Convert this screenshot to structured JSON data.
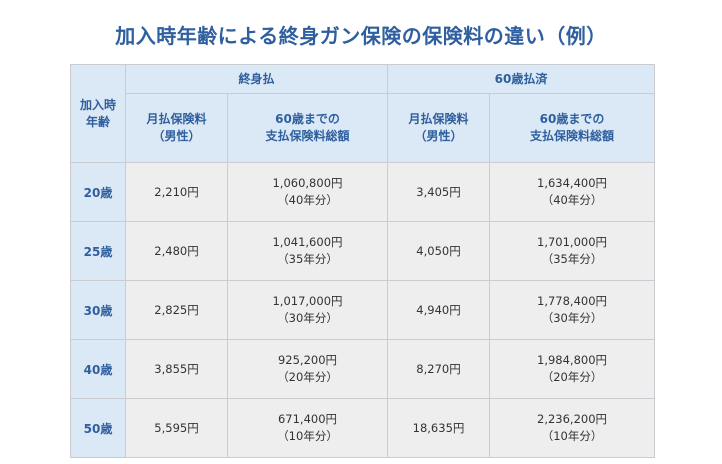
{
  "title": "加入時年齢による終身ガン保険の保険料の違い（例）",
  "table": {
    "age_header": [
      "加入時",
      "年齢"
    ],
    "groups": [
      "終身払",
      "60歳払済"
    ],
    "subheaders": [
      [
        "月払保険料",
        "（男性）"
      ],
      [
        "60歳までの",
        "支払保険料総額"
      ],
      [
        "月払保険料",
        "（男性）"
      ],
      [
        "60歳までの",
        "支払保険料総額"
      ]
    ],
    "rows": [
      {
        "age": "20歳",
        "lifetime_monthly": "2,210円",
        "lifetime_total": "1,060,800円",
        "lifetime_years": "（40年分）",
        "paid60_monthly": "3,405円",
        "paid60_total": "1,634,400円",
        "paid60_years": "（40年分）"
      },
      {
        "age": "25歳",
        "lifetime_monthly": "2,480円",
        "lifetime_total": "1,041,600円",
        "lifetime_years": "（35年分）",
        "paid60_monthly": "4,050円",
        "paid60_total": "1,701,000円",
        "paid60_years": "（35年分）"
      },
      {
        "age": "30歳",
        "lifetime_monthly": "2,825円",
        "lifetime_total": "1,017,000円",
        "lifetime_years": "（30年分）",
        "paid60_monthly": "4,940円",
        "paid60_total": "1,778,400円",
        "paid60_years": "（30年分）"
      },
      {
        "age": "40歳",
        "lifetime_monthly": "3,855円",
        "lifetime_total": "925,200円",
        "lifetime_years": "（20年分）",
        "paid60_monthly": "8,270円",
        "paid60_total": "1,984,800円",
        "paid60_years": "（20年分）"
      },
      {
        "age": "50歳",
        "lifetime_monthly": "5,595円",
        "lifetime_total": "671,400円",
        "lifetime_years": "（10年分）",
        "paid60_monthly": "18,635円",
        "paid60_total": "2,236,200円",
        "paid60_years": "（10年分）"
      }
    ]
  },
  "colors": {
    "title": "#2f5f9e",
    "header_bg": "#dbe8f6",
    "header_text": "#2f5f9e",
    "cell_bg": "#eeeeee",
    "border": "#c9ccd1"
  }
}
